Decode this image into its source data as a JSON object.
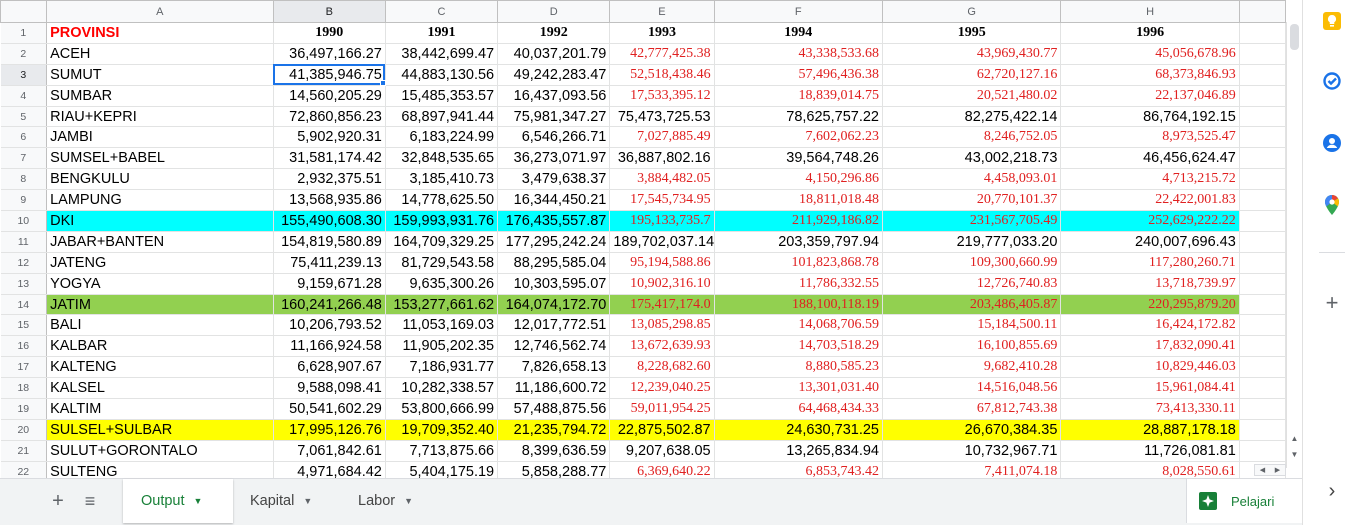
{
  "columns": [
    "A",
    "B",
    "C",
    "D",
    "E",
    "F",
    "G",
    "H"
  ],
  "header_row": {
    "row_number": "1",
    "label": "PROVINSI",
    "years": [
      "1990",
      "1991",
      "1992",
      "1993",
      "1994",
      "1995",
      "1996"
    ]
  },
  "rows": [
    {
      "n": "2",
      "name": "ACEH",
      "values": [
        "36,497,166.27",
        "38,442,699.47",
        "40,037,201.79",
        "42,777,425.38",
        "43,338,533.68",
        "43,969,430.77",
        "45,056,678.96"
      ],
      "red": [
        false,
        false,
        false,
        true,
        true,
        true,
        true
      ],
      "bg": ""
    },
    {
      "n": "3",
      "name": "SUMUT",
      "values": [
        "41,385,946.75",
        "44,883,130.56",
        "49,242,283.47",
        "52,518,438.46",
        "57,496,436.38",
        "62,720,127.16",
        "68,373,846.93"
      ],
      "red": [
        false,
        false,
        false,
        true,
        true,
        true,
        true
      ],
      "bg": ""
    },
    {
      "n": "4",
      "name": "SUMBAR",
      "values": [
        "14,560,205.29",
        "15,485,353.57",
        "16,437,093.56",
        "17,533,395.12",
        "18,839,014.75",
        "20,521,480.02",
        "22,137,046.89"
      ],
      "red": [
        false,
        false,
        false,
        true,
        true,
        true,
        true
      ],
      "bg": ""
    },
    {
      "n": "5",
      "name": "RIAU+KEPRI",
      "values": [
        "72,860,856.23",
        "68,897,941.44",
        "75,981,347.27",
        "75,473,725.53",
        "78,625,757.22",
        "82,275,422.14",
        "86,764,192.15"
      ],
      "red": [
        false,
        false,
        false,
        false,
        false,
        false,
        false
      ],
      "bg": ""
    },
    {
      "n": "6",
      "name": "JAMBI",
      "values": [
        "5,902,920.31",
        "6,183,224.99",
        "6,546,266.71",
        "7,027,885.49",
        "7,602,062.23",
        "8,246,752.05",
        "8,973,525.47"
      ],
      "red": [
        false,
        false,
        false,
        true,
        true,
        true,
        true
      ],
      "bg": ""
    },
    {
      "n": "7",
      "name": "SUMSEL+BABEL",
      "values": [
        "31,581,174.42",
        "32,848,535.65",
        "36,273,071.97",
        "36,887,802.16",
        "39,564,748.26",
        "43,002,218.73",
        "46,456,624.47"
      ],
      "red": [
        false,
        false,
        false,
        false,
        false,
        false,
        false
      ],
      "bg": ""
    },
    {
      "n": "8",
      "name": "BENGKULU",
      "values": [
        "2,932,375.51",
        "3,185,410.73",
        "3,479,638.37",
        "3,884,482.05",
        "4,150,296.86",
        "4,458,093.01",
        "4,713,215.72"
      ],
      "red": [
        false,
        false,
        false,
        true,
        true,
        true,
        true
      ],
      "bg": ""
    },
    {
      "n": "9",
      "name": "LAMPUNG",
      "values": [
        "13,568,935.86",
        "14,778,625.50",
        "16,344,450.21",
        "17,545,734.95",
        "18,811,018.48",
        "20,770,101.37",
        "22,422,001.83"
      ],
      "red": [
        false,
        false,
        false,
        true,
        true,
        true,
        true
      ],
      "bg": ""
    },
    {
      "n": "10",
      "name": "DKI",
      "values": [
        "155,490,608.30",
        "159,993,931.76",
        "176,435,557.87",
        "195,133,735.7",
        "211,929,186.82",
        "231,567,705.49",
        "252,629,222.22"
      ],
      "red": [
        false,
        false,
        false,
        true,
        true,
        true,
        true
      ],
      "bg": "#00ffff"
    },
    {
      "n": "11",
      "name": "JABAR+BANTEN",
      "values": [
        "154,819,580.89",
        "164,709,329.25",
        "177,295,242.24",
        "189,702,037.14",
        "203,359,797.94",
        "219,777,033.20",
        "240,007,696.43"
      ],
      "red": [
        false,
        false,
        false,
        false,
        false,
        false,
        false
      ],
      "bg": ""
    },
    {
      "n": "12",
      "name": "JATENG",
      "values": [
        "75,411,239.13",
        "81,729,543.58",
        "88,295,585.04",
        "95,194,588.86",
        "101,823,868.78",
        "109,300,660.99",
        "117,280,260.71"
      ],
      "red": [
        false,
        false,
        false,
        true,
        true,
        true,
        true
      ],
      "bg": ""
    },
    {
      "n": "13",
      "name": "YOGYA",
      "values": [
        "9,159,671.28",
        "9,635,300.26",
        "10,303,595.07",
        "10,902,316.10",
        "11,786,332.55",
        "12,726,740.83",
        "13,718,739.97"
      ],
      "red": [
        false,
        false,
        false,
        true,
        true,
        true,
        true
      ],
      "bg": ""
    },
    {
      "n": "14",
      "name": "JATIM",
      "values": [
        "160,241,266.48",
        "153,277,661.62",
        "164,074,172.70",
        "175,417,174.0",
        "188,100,118.19",
        "203,486,405.87",
        "220,295,879.20"
      ],
      "red": [
        false,
        false,
        false,
        true,
        true,
        true,
        true
      ],
      "bg": "#92d050"
    },
    {
      "n": "15",
      "name": "BALI",
      "values": [
        "10,206,793.52",
        "11,053,169.03",
        "12,017,772.51",
        "13,085,298.85",
        "14,068,706.59",
        "15,184,500.11",
        "16,424,172.82"
      ],
      "red": [
        false,
        false,
        false,
        true,
        true,
        true,
        true
      ],
      "bg": ""
    },
    {
      "n": "16",
      "name": "KALBAR",
      "values": [
        "11,166,924.58",
        "11,905,202.35",
        "12,746,562.74",
        "13,672,639.93",
        "14,703,518.29",
        "16,100,855.69",
        "17,832,090.41"
      ],
      "red": [
        false,
        false,
        false,
        true,
        true,
        true,
        true
      ],
      "bg": ""
    },
    {
      "n": "17",
      "name": "KALTENG",
      "values": [
        "6,628,907.67",
        "7,186,931.77",
        "7,826,658.13",
        "8,228,682.60",
        "8,880,585.23",
        "9,682,410.28",
        "10,829,446.03"
      ],
      "red": [
        false,
        false,
        false,
        true,
        true,
        true,
        true
      ],
      "bg": ""
    },
    {
      "n": "18",
      "name": "KALSEL",
      "values": [
        "9,588,098.41",
        "10,282,338.57",
        "11,186,600.72",
        "12,239,040.25",
        "13,301,031.40",
        "14,516,048.56",
        "15,961,084.41"
      ],
      "red": [
        false,
        false,
        false,
        true,
        true,
        true,
        true
      ],
      "bg": ""
    },
    {
      "n": "19",
      "name": "KALTIM",
      "values": [
        "50,541,602.29",
        "53,800,666.99",
        "57,488,875.56",
        "59,011,954.25",
        "64,468,434.33",
        "67,812,743.38",
        "73,413,330.11"
      ],
      "red": [
        false,
        false,
        false,
        true,
        true,
        true,
        true
      ],
      "bg": ""
    },
    {
      "n": "20",
      "name": "SULSEL+SULBAR",
      "values": [
        "17,995,126.76",
        "19,709,352.40",
        "21,235,794.72",
        "22,875,502.87",
        "24,630,731.25",
        "26,670,384.35",
        "28,887,178.18"
      ],
      "red": [
        false,
        false,
        false,
        false,
        false,
        false,
        false
      ],
      "bg": "#ffff00"
    },
    {
      "n": "21",
      "name": "SULUT+GORONTALO",
      "values": [
        "7,061,842.61",
        "7,713,875.66",
        "8,399,636.59",
        "9,207,638.05",
        "13,265,834.94",
        "10,732,967.71",
        "11,726,081.81"
      ],
      "red": [
        false,
        false,
        false,
        false,
        false,
        false,
        false
      ],
      "bg": ""
    },
    {
      "n": "22",
      "name": "SULTENG",
      "values": [
        "4,971,684.42",
        "5,404,175.19",
        "5,858,288.77",
        "6,369,640.22",
        "6,853,743.42",
        "7,411,074.18",
        "8,028,550.61"
      ],
      "red": [
        false,
        false,
        false,
        true,
        true,
        true,
        true
      ],
      "bg": ""
    }
  ],
  "selection": {
    "column": "B",
    "row": "3"
  },
  "sheet_tabs": [
    {
      "label": "Output",
      "active": true
    },
    {
      "label": "Kapital",
      "active": false
    },
    {
      "label": "Labor",
      "active": false
    }
  ],
  "bottom_buttons": {
    "add": "+",
    "all_sheets": "≡"
  },
  "explore": {
    "label": "Pelajari"
  },
  "side_panel": {
    "icons": [
      "keep-icon",
      "tasks-icon",
      "contacts-icon",
      "maps-icon",
      "add-icon"
    ],
    "collapse": "›"
  },
  "colors": {
    "red_text": "#e02020",
    "header_red": "#ff0000",
    "dki_bg": "#00ffff",
    "jatim_bg": "#92d050",
    "sulsel_bg": "#ffff00",
    "selection_blue": "#1a73e8",
    "tab_active_green": "#188038"
  }
}
